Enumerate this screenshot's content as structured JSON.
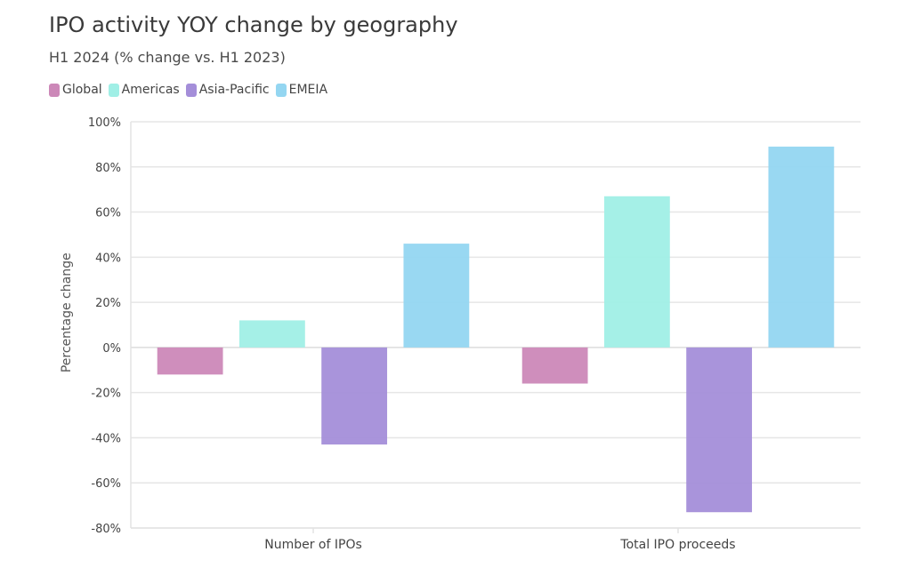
{
  "header": {
    "title": "IPO activity YOY change by geography",
    "subtitle": "H1 2024 (% change vs. H1 2023)"
  },
  "legend": {
    "items": [
      {
        "label": "Global",
        "color": "#cc88b8"
      },
      {
        "label": "Americas",
        "color": "#a0efe6"
      },
      {
        "label": "Asia-Pacific",
        "color": "#a48ed9"
      },
      {
        "label": "EMEIA",
        "color": "#94d6f1"
      }
    ],
    "placement": "top-left"
  },
  "chart_data": {
    "type": "bar",
    "title": "IPO activity YOY change by geography",
    "subtitle": "H1 2024 (% change vs. H1 2023)",
    "categories": [
      "Number of IPOs",
      "Total IPO proceeds"
    ],
    "series": [
      {
        "name": "Global",
        "color": "#cc88b8",
        "values": [
          -12,
          -16
        ]
      },
      {
        "name": "Americas",
        "color": "#a0efe6",
        "values": [
          12,
          67
        ]
      },
      {
        "name": "Asia-Pacific",
        "color": "#a48ed9",
        "values": [
          -43,
          -73
        ]
      },
      {
        "name": "EMEIA",
        "color": "#94d6f1",
        "values": [
          46,
          89
        ]
      }
    ],
    "xlabel": "",
    "ylabel": "Percentage change",
    "ylim": [
      -80,
      100
    ],
    "yticks": [
      -80,
      -60,
      -40,
      -20,
      0,
      20,
      40,
      60,
      80,
      100
    ],
    "ytick_labels": [
      "-80%",
      "-60%",
      "-40%",
      "-20%",
      "0%",
      "20%",
      "40%",
      "60%",
      "80%",
      "100%"
    ],
    "grid": true,
    "legend_position": "top-left"
  }
}
